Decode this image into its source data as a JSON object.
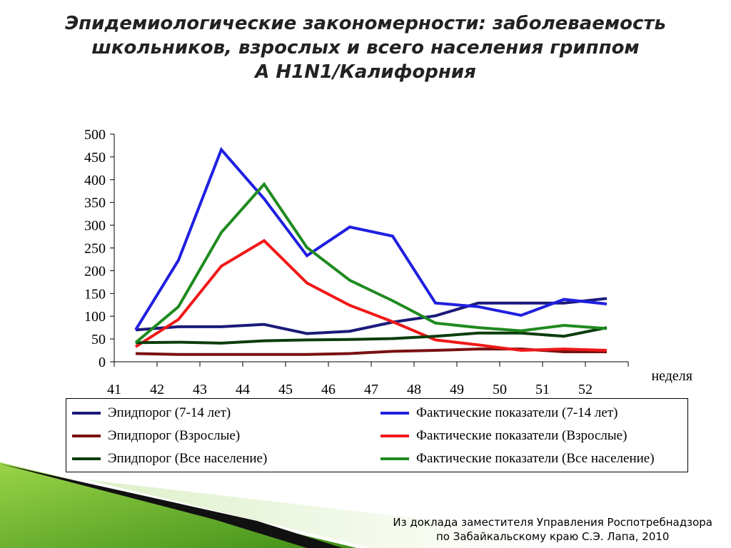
{
  "title_lines": [
    "Эпидемиологические закономерности: заболеваемость",
    "школьников, взрослых и всего населения гриппом",
    "А H1N1/Калифорния"
  ],
  "footer_lines": [
    "Из доклада заместителя Управления Роспотребнадзора",
    "по Забайкальскому краю С.Э. Лапа, 2010"
  ],
  "chart_data": {
    "type": "line",
    "title": "",
    "xlabel": "неделя",
    "ylabel": "",
    "ylim": [
      0,
      500
    ],
    "yticks": [
      0,
      50,
      100,
      150,
      200,
      250,
      300,
      350,
      400,
      450,
      500
    ],
    "x": [
      "41",
      "42",
      "43",
      "44",
      "45",
      "46",
      "47",
      "48",
      "49",
      "50",
      "51",
      "52"
    ],
    "grid": false,
    "legend_position": "bottom",
    "series": [
      {
        "name": "Эпидпорог (7-14 лет)",
        "color": "#1a1a7a",
        "values": [
          70,
          77,
          77,
          82,
          62,
          67,
          87,
          101,
          129,
          129,
          129,
          139
        ]
      },
      {
        "name": "Фактические показатели (7-14 лет)",
        "color": "#1f1fe0",
        "values": [
          70,
          223,
          466,
          358,
          233,
          296,
          276,
          129,
          121,
          102,
          137,
          127
        ]
      },
      {
        "name": "Эпидпорог (Взрослые)",
        "color": "#7a1010",
        "values": [
          18,
          16,
          16,
          16,
          16,
          18,
          23,
          25,
          28,
          28,
          22,
          22
        ]
      },
      {
        "name": "Фактические показатели (Взрослые)",
        "color": "#f01818",
        "values": [
          33,
          93,
          210,
          266,
          173,
          124,
          88,
          48,
          37,
          25,
          28,
          25
        ]
      },
      {
        "name": "Эпидпорог (Все население)",
        "color": "#0d3d0d",
        "values": [
          42,
          43,
          41,
          46,
          48,
          49,
          51,
          56,
          63,
          63,
          56,
          75
        ]
      },
      {
        "name": "Фактические показатели (Все население)",
        "color": "#1f8a1f",
        "values": [
          42,
          121,
          284,
          390,
          251,
          179,
          134,
          85,
          75,
          68,
          80,
          73
        ]
      }
    ]
  }
}
